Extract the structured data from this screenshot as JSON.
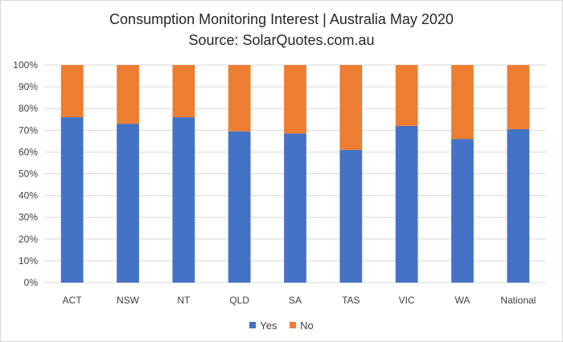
{
  "chart_data": {
    "type": "bar",
    "stacked": true,
    "title": "Consumption Monitoring Interest | Australia May 2020",
    "subtitle": "Source: SolarQuotes.com.au",
    "categories": [
      "ACT",
      "NSW",
      "NT",
      "QLD",
      "SA",
      "TAS",
      "VIC",
      "WA",
      "National"
    ],
    "series": [
      {
        "name": "Yes",
        "color": "#4472C4",
        "values": [
          76,
          73,
          76,
          69.5,
          68.5,
          61,
          72,
          66,
          70.5
        ]
      },
      {
        "name": "No",
        "color": "#ED7D31",
        "values": [
          24,
          27,
          24,
          30.5,
          31.5,
          39,
          28,
          34,
          29.5
        ]
      }
    ],
    "ylim": [
      0,
      100
    ],
    "yticks": [
      "0%",
      "10%",
      "20%",
      "30%",
      "40%",
      "50%",
      "60%",
      "70%",
      "80%",
      "90%",
      "100%"
    ],
    "grid": true,
    "legend_position": "bottom"
  }
}
